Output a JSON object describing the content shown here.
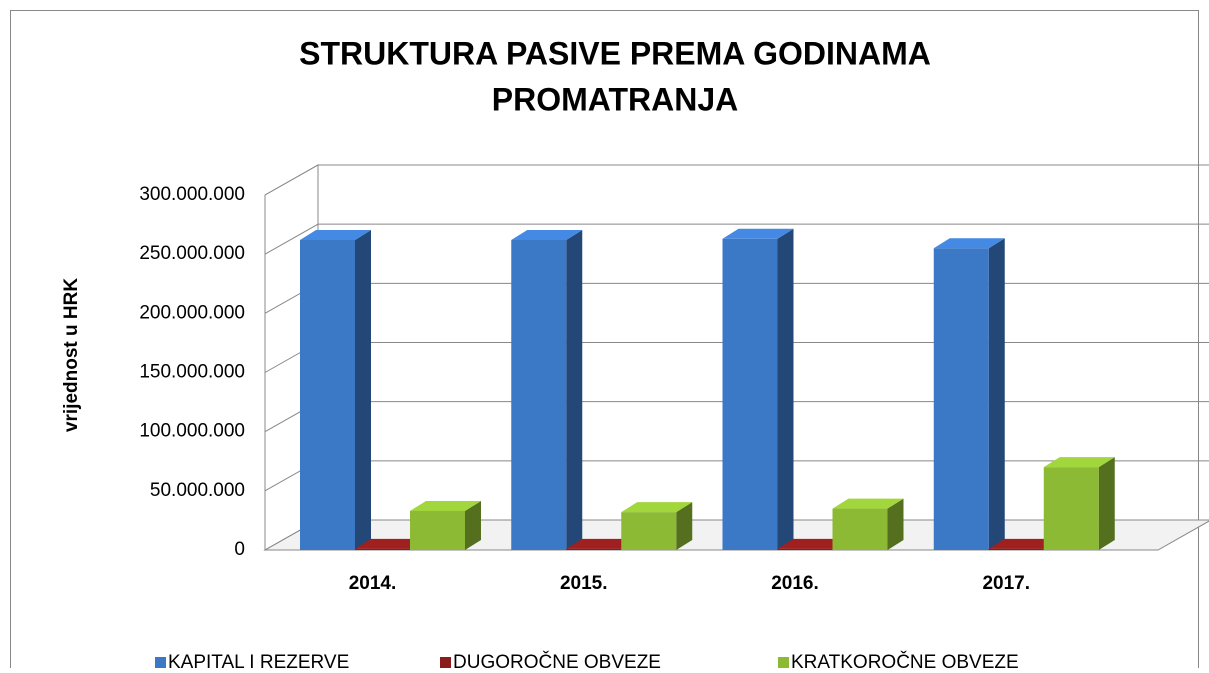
{
  "chart_data": {
    "type": "bar3d",
    "title": [
      "STRUKTURA PASIVE PREMA GODINAMA",
      "PROMATRANJA"
    ],
    "y_axis_label": "vrijednost u HRK",
    "categories": [
      "2014.",
      "2015.",
      "2016.",
      "2017."
    ],
    "series": [
      {
        "name": "KAPITAL I REZERVE",
        "color": "#3b78c6",
        "values": [
          262000000,
          262000000,
          263000000,
          255000000
        ]
      },
      {
        "name": "DUGOROČNE OBVEZE",
        "color": "#8b1c1c",
        "values": [
          1000000,
          1000000,
          1000000,
          1000000
        ]
      },
      {
        "name": "KRATKOROČNE OBVEZE",
        "color": "#8cba34",
        "values": [
          33000000,
          32000000,
          35000000,
          70000000
        ]
      }
    ],
    "ylim": [
      0,
      300000000
    ],
    "yticks": [
      {
        "value": 0,
        "label": "0"
      },
      {
        "value": 50000000,
        "label": "50.000.000"
      },
      {
        "value": 100000000,
        "label": "100.000.000"
      },
      {
        "value": 150000000,
        "label": "150.000.000"
      },
      {
        "value": 200000000,
        "label": "200.000.000"
      },
      {
        "value": 250000000,
        "label": "250.000.000"
      },
      {
        "value": 300000000,
        "label": "300.000.000"
      }
    ],
    "grid": true,
    "legend": "bottom"
  }
}
